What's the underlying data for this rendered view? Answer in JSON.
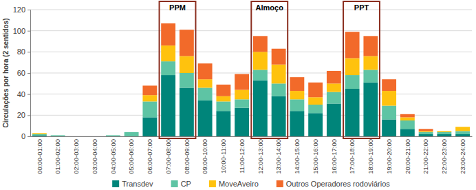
{
  "chart_data": {
    "type": "bar",
    "stacked": true,
    "ylabel": "Circulações por hora (2 sentidos)",
    "categories": [
      "00:00-01:00",
      "01:00-02:00",
      "02:00-03:00",
      "03:00-04:00",
      "04:00-05:00",
      "05:00-06:00",
      "06:00-07:00",
      "07:00-08:00",
      "08:00-09:00",
      "09:00-10:00",
      "10:00-11:00",
      "11:00-12:00",
      "12:00-13:00",
      "13:00-14:00",
      "14:00-15:00",
      "15:00-16:00",
      "16:00-17:00",
      "17:00-18:00",
      "18:00-19:00",
      "19:00-20:00",
      "20:00-21:00",
      "21:00-22:00",
      "22:00-23:00",
      "23:00-24:00"
    ],
    "series": [
      {
        "name": "Transdev",
        "color": "#00857a",
        "values": [
          1,
          0,
          0,
          0,
          0,
          0,
          18,
          58,
          46,
          34,
          24,
          27,
          53,
          38,
          24,
          22,
          31,
          45,
          51,
          16,
          7,
          2,
          2,
          2
        ]
      },
      {
        "name": "CP",
        "color": "#5ec4a4",
        "values": [
          1,
          1,
          0,
          0,
          1,
          4,
          15,
          13,
          14,
          12,
          9,
          8,
          10,
          12,
          11,
          8,
          11,
          13,
          12,
          13,
          8,
          2,
          2,
          3
        ]
      },
      {
        "name": "MoveAveiro",
        "color": "#ffc20e",
        "values": [
          1,
          0,
          0,
          0,
          0,
          0,
          6,
          15,
          16,
          8,
          5,
          9,
          17,
          18,
          8,
          7,
          8,
          16,
          13,
          14,
          3,
          1,
          1,
          4
        ]
      },
      {
        "name": "Outros Operadores rodoviários",
        "color": "#f26a2a",
        "values": [
          0,
          0,
          0,
          0,
          0,
          0,
          9,
          21,
          25,
          15,
          11,
          15,
          15,
          15,
          13,
          14,
          12,
          25,
          19,
          11,
          3,
          2,
          0,
          0
        ]
      }
    ],
    "annotations": [
      {
        "text": "PPM",
        "categories": [
          "07:00-08:00",
          "08:00-09:00"
        ]
      },
      {
        "text": "Almoço",
        "categories": [
          "12:00-13:00",
          "13:00-14:00"
        ]
      },
      {
        "text": "PPT",
        "categories": [
          "17:00-18:00",
          "18:00-19:00"
        ]
      }
    ],
    "ylim": [
      0,
      120
    ],
    "yticks": [
      0,
      20,
      40,
      60,
      80,
      100,
      120
    ],
    "grid": true,
    "legend": "bottom"
  }
}
